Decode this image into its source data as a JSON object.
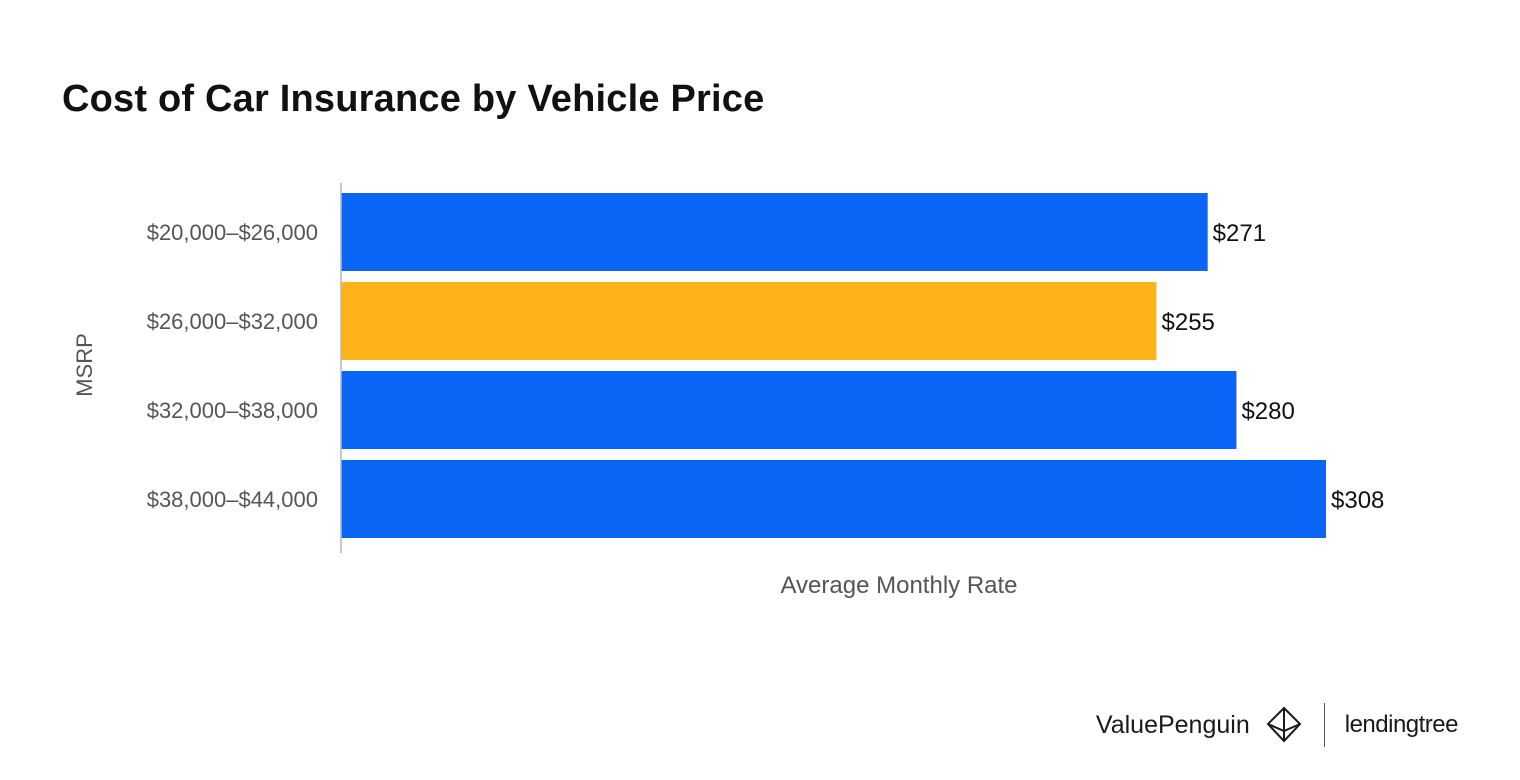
{
  "title": "Cost of Car Insurance by Vehicle Price",
  "chart_data": {
    "type": "bar",
    "orientation": "horizontal",
    "title": "Cost of Car Insurance by Vehicle Price",
    "xlabel": "Average Monthly Rate",
    "ylabel": "MSRP",
    "categories": [
      "$20,000–$26,000",
      "$26,000–$32,000",
      "$32,000–$38,000",
      "$38,000–$44,000"
    ],
    "values": [
      271,
      255,
      280,
      308
    ],
    "value_labels": [
      "$271",
      "$255",
      "$280",
      "$308"
    ],
    "bar_colors": [
      "#0a64f5",
      "#ffb31a",
      "#0a64f5",
      "#0a64f5"
    ],
    "xlim": [
      0,
      308
    ],
    "grid": false,
    "legend": "none"
  },
  "footer": {
    "brand_left": "ValuePenguin",
    "brand_left_icon": "penguin-diamond-logo-icon",
    "brand_right": "lendingtree"
  },
  "colors": {
    "accent_blue": "#0a64f5",
    "highlight_orange": "#ffb31a",
    "text_dark": "#111111",
    "text_gray": "#555555"
  }
}
